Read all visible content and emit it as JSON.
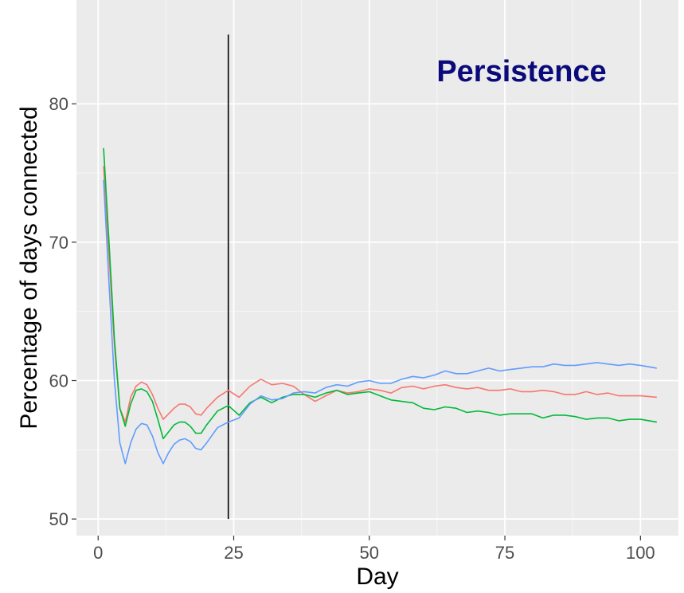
{
  "chart_data": {
    "type": "line",
    "title": "",
    "annotation": "Persistence",
    "xlabel": "Day",
    "ylabel": "Percentage of days connected",
    "xlim": [
      -4,
      107
    ],
    "ylim": [
      48.8,
      87.5
    ],
    "x_ticks": [
      0,
      25,
      50,
      75,
      100
    ],
    "y_ticks": [
      50,
      60,
      70,
      80
    ],
    "x_tick_labels": [
      "0",
      "25",
      "50",
      "75",
      "100"
    ],
    "y_tick_labels": [
      "50",
      "60",
      "70",
      "80"
    ],
    "grid": true,
    "legend": "none",
    "vline": {
      "x": 24,
      "y_from": 50,
      "y_to": 85
    },
    "series": [
      {
        "color": "#f8766d",
        "x": [
          1,
          2,
          3,
          4,
          5,
          6,
          7,
          8,
          9,
          10,
          11,
          12,
          13,
          14,
          15,
          16,
          17,
          18,
          19,
          20,
          22,
          24,
          26,
          28,
          30,
          32,
          34,
          36,
          38,
          40,
          42,
          44,
          46,
          48,
          50,
          52,
          54,
          56,
          58,
          60,
          62,
          64,
          66,
          68,
          70,
          72,
          74,
          76,
          78,
          80,
          82,
          84,
          86,
          88,
          90,
          92,
          94,
          96,
          98,
          100,
          103
        ],
        "values": [
          75.5,
          69.0,
          62.5,
          58.0,
          57.0,
          58.8,
          59.6,
          59.9,
          59.7,
          59.0,
          58.0,
          57.2,
          57.6,
          58.0,
          58.3,
          58.3,
          58.1,
          57.6,
          57.5,
          58.0,
          58.8,
          59.3,
          58.8,
          59.6,
          60.1,
          59.7,
          59.8,
          59.6,
          59.0,
          58.5,
          58.9,
          59.3,
          59.1,
          59.2,
          59.4,
          59.3,
          59.1,
          59.5,
          59.6,
          59.4,
          59.6,
          59.7,
          59.5,
          59.4,
          59.5,
          59.3,
          59.3,
          59.4,
          59.2,
          59.2,
          59.3,
          59.2,
          59.0,
          59.0,
          59.2,
          59.0,
          59.1,
          58.9,
          58.9,
          58.9,
          58.8
        ]
      },
      {
        "color": "#00ba38",
        "x": [
          1,
          2,
          3,
          4,
          5,
          6,
          7,
          8,
          9,
          10,
          11,
          12,
          13,
          14,
          15,
          16,
          17,
          18,
          19,
          20,
          22,
          24,
          26,
          28,
          30,
          32,
          34,
          36,
          38,
          40,
          42,
          44,
          46,
          48,
          50,
          52,
          54,
          56,
          58,
          60,
          62,
          64,
          66,
          68,
          70,
          72,
          74,
          76,
          78,
          80,
          82,
          84,
          86,
          88,
          90,
          92,
          94,
          96,
          98,
          100,
          103
        ],
        "values": [
          76.8,
          70.0,
          63.0,
          58.0,
          56.7,
          58.3,
          59.3,
          59.4,
          59.2,
          58.5,
          57.2,
          55.8,
          56.3,
          56.8,
          57.0,
          57.0,
          56.7,
          56.2,
          56.2,
          56.8,
          57.8,
          58.2,
          57.5,
          58.4,
          58.8,
          58.4,
          58.8,
          59.0,
          59.0,
          58.8,
          59.1,
          59.3,
          59.0,
          59.1,
          59.2,
          58.9,
          58.6,
          58.5,
          58.4,
          58.0,
          57.9,
          58.1,
          58.0,
          57.7,
          57.8,
          57.7,
          57.5,
          57.6,
          57.6,
          57.6,
          57.3,
          57.5,
          57.5,
          57.4,
          57.2,
          57.3,
          57.3,
          57.1,
          57.2,
          57.2,
          57.0
        ]
      },
      {
        "color": "#619cff",
        "x": [
          1,
          2,
          3,
          4,
          5,
          6,
          7,
          8,
          9,
          10,
          11,
          12,
          13,
          14,
          15,
          16,
          17,
          18,
          19,
          20,
          22,
          24,
          26,
          28,
          30,
          32,
          34,
          36,
          38,
          40,
          42,
          44,
          46,
          48,
          50,
          52,
          54,
          56,
          58,
          60,
          62,
          64,
          66,
          68,
          70,
          72,
          74,
          76,
          78,
          80,
          82,
          84,
          86,
          88,
          90,
          92,
          94,
          96,
          98,
          100,
          103
        ],
        "values": [
          74.5,
          67.0,
          60.0,
          55.5,
          54.0,
          55.5,
          56.5,
          56.9,
          56.8,
          56.0,
          54.8,
          54.0,
          54.8,
          55.4,
          55.7,
          55.8,
          55.6,
          55.1,
          55.0,
          55.5,
          56.6,
          57.0,
          57.3,
          58.3,
          58.9,
          58.6,
          58.7,
          59.1,
          59.2,
          59.1,
          59.5,
          59.7,
          59.6,
          59.9,
          60.0,
          59.8,
          59.8,
          60.1,
          60.3,
          60.2,
          60.4,
          60.7,
          60.5,
          60.5,
          60.7,
          60.9,
          60.7,
          60.8,
          60.9,
          61.0,
          61.0,
          61.2,
          61.1,
          61.1,
          61.2,
          61.3,
          61.2,
          61.1,
          61.2,
          61.1,
          60.9
        ]
      }
    ]
  }
}
